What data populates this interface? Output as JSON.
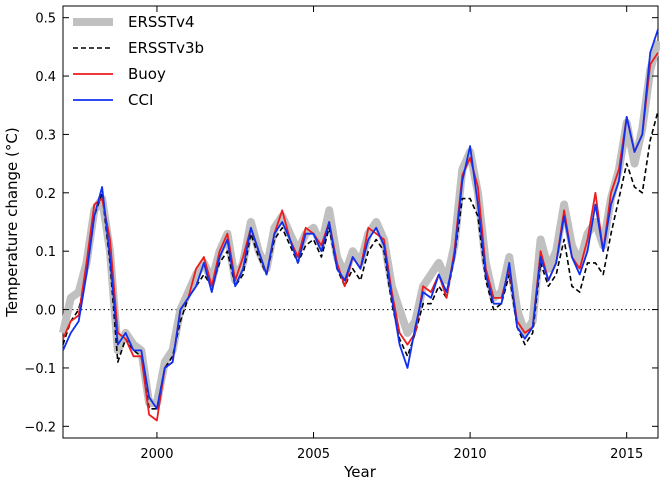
{
  "chart_data": {
    "type": "line",
    "title": "",
    "xlabel": "Year",
    "ylabel": "Temperature change (°C)",
    "xlim": [
      1997.0,
      2016.0
    ],
    "ylim": [
      -0.22,
      0.52
    ],
    "xticks": [
      2000,
      2005,
      2010,
      2015
    ],
    "xtick_labels": [
      "2000",
      "2005",
      "2010",
      "2015"
    ],
    "yticks": [
      -0.2,
      -0.1,
      0.0,
      0.1,
      0.2,
      0.3,
      0.4,
      0.5
    ],
    "ytick_labels": [
      "−0.2",
      "−0.1",
      "0.0",
      "0.1",
      "0.2",
      "0.3",
      "0.4",
      "0.5"
    ],
    "zero_line": true,
    "legend_position": "top-left",
    "x": [
      1997.0,
      1997.25,
      1997.5,
      1997.75,
      1998.0,
      1998.25,
      1998.5,
      1998.75,
      1999.0,
      1999.25,
      1999.5,
      1999.75,
      2000.0,
      2000.25,
      2000.5,
      2000.75,
      2001.0,
      2001.25,
      2001.5,
      2001.75,
      2002.0,
      2002.25,
      2002.5,
      2002.75,
      2003.0,
      2003.25,
      2003.5,
      2003.75,
      2004.0,
      2004.25,
      2004.5,
      2004.75,
      2005.0,
      2005.25,
      2005.5,
      2005.75,
      2006.0,
      2006.25,
      2006.5,
      2006.75,
      2007.0,
      2007.25,
      2007.5,
      2007.75,
      2008.0,
      2008.25,
      2008.5,
      2008.75,
      2009.0,
      2009.25,
      2009.5,
      2009.75,
      2010.0,
      2010.25,
      2010.5,
      2010.75,
      2011.0,
      2011.25,
      2011.5,
      2011.75,
      2012.0,
      2012.25,
      2012.5,
      2012.75,
      2013.0,
      2013.25,
      2013.5,
      2013.75,
      2014.0,
      2014.25,
      2014.5,
      2014.75,
      2015.0,
      2015.25,
      2015.5,
      2015.75,
      2016.0
    ],
    "series": [
      {
        "name": "ERSSTv4",
        "color": "#c0c0c0",
        "style": "solid-thick",
        "values": [
          -0.04,
          0.02,
          0.03,
          0.08,
          0.17,
          0.19,
          0.1,
          -0.07,
          -0.04,
          -0.06,
          -0.07,
          -0.16,
          -0.16,
          -0.09,
          -0.07,
          0.0,
          0.03,
          0.06,
          0.08,
          0.05,
          0.1,
          0.13,
          0.05,
          0.08,
          0.15,
          0.1,
          0.07,
          0.14,
          0.16,
          0.13,
          0.1,
          0.13,
          0.14,
          0.11,
          0.17,
          0.09,
          0.06,
          0.1,
          0.08,
          0.13,
          0.15,
          0.12,
          0.04,
          0.0,
          -0.04,
          -0.02,
          0.04,
          0.06,
          0.08,
          0.05,
          0.11,
          0.24,
          0.27,
          0.2,
          0.08,
          0.02,
          0.03,
          0.09,
          0.0,
          -0.04,
          -0.02,
          0.12,
          0.07,
          0.1,
          0.18,
          0.11,
          0.08,
          0.13,
          0.15,
          0.11,
          0.19,
          0.24,
          0.32,
          0.25,
          0.31,
          0.41,
          0.46
        ]
      },
      {
        "name": "ERSSTv3b",
        "color": "#000000",
        "style": "dashed",
        "values": [
          -0.06,
          -0.02,
          0.0,
          0.06,
          0.16,
          0.2,
          0.08,
          -0.09,
          -0.05,
          -0.07,
          -0.08,
          -0.17,
          -0.17,
          -0.1,
          -0.08,
          -0.02,
          0.02,
          0.04,
          0.06,
          0.04,
          0.08,
          0.1,
          0.04,
          0.06,
          0.13,
          0.09,
          0.06,
          0.12,
          0.14,
          0.11,
          0.08,
          0.11,
          0.12,
          0.09,
          0.14,
          0.07,
          0.04,
          0.07,
          0.05,
          0.1,
          0.12,
          0.1,
          0.01,
          -0.05,
          -0.08,
          -0.04,
          0.01,
          0.01,
          0.04,
          0.02,
          0.09,
          0.19,
          0.19,
          0.16,
          0.05,
          0.0,
          0.01,
          0.06,
          -0.03,
          -0.06,
          -0.04,
          0.08,
          0.04,
          0.06,
          0.12,
          0.04,
          0.03,
          0.08,
          0.08,
          0.06,
          0.13,
          0.19,
          0.25,
          0.21,
          0.2,
          0.29,
          0.34
        ]
      },
      {
        "name": "Buoy",
        "color": "#ee1c1c",
        "style": "solid",
        "values": [
          -0.05,
          -0.02,
          -0.01,
          0.08,
          0.18,
          0.19,
          0.12,
          -0.04,
          -0.05,
          -0.08,
          -0.08,
          -0.18,
          -0.19,
          -0.1,
          -0.09,
          0.0,
          0.02,
          0.07,
          0.09,
          0.04,
          0.1,
          0.13,
          0.05,
          0.09,
          0.14,
          0.1,
          0.06,
          0.13,
          0.17,
          0.12,
          0.09,
          0.14,
          0.13,
          0.11,
          0.15,
          0.08,
          0.04,
          0.09,
          0.07,
          0.14,
          0.13,
          0.12,
          0.03,
          -0.04,
          -0.06,
          -0.04,
          0.04,
          0.03,
          0.06,
          0.02,
          0.1,
          0.23,
          0.26,
          0.21,
          0.07,
          0.02,
          0.02,
          0.07,
          -0.02,
          -0.04,
          -0.03,
          0.1,
          0.05,
          0.08,
          0.17,
          0.09,
          0.07,
          0.12,
          0.2,
          0.1,
          0.2,
          0.24,
          0.33,
          0.27,
          0.3,
          0.42,
          0.44
        ]
      },
      {
        "name": "CCI",
        "color": "#1030f0",
        "style": "solid",
        "values": [
          -0.07,
          -0.04,
          -0.02,
          0.06,
          0.16,
          0.21,
          0.09,
          -0.06,
          -0.04,
          -0.07,
          -0.07,
          -0.15,
          -0.17,
          -0.1,
          -0.09,
          0.0,
          0.02,
          0.04,
          0.08,
          0.03,
          0.09,
          0.12,
          0.04,
          0.07,
          0.14,
          0.1,
          0.06,
          0.13,
          0.15,
          0.12,
          0.08,
          0.13,
          0.13,
          0.1,
          0.15,
          0.07,
          0.05,
          0.09,
          0.07,
          0.12,
          0.14,
          0.11,
          0.02,
          -0.06,
          -0.1,
          -0.03,
          0.03,
          0.02,
          0.06,
          0.03,
          0.09,
          0.22,
          0.28,
          0.18,
          0.06,
          0.01,
          0.01,
          0.08,
          -0.03,
          -0.05,
          -0.03,
          0.09,
          0.05,
          0.08,
          0.16,
          0.09,
          0.06,
          0.1,
          0.18,
          0.1,
          0.18,
          0.22,
          0.33,
          0.27,
          0.3,
          0.44,
          0.48
        ]
      }
    ]
  }
}
